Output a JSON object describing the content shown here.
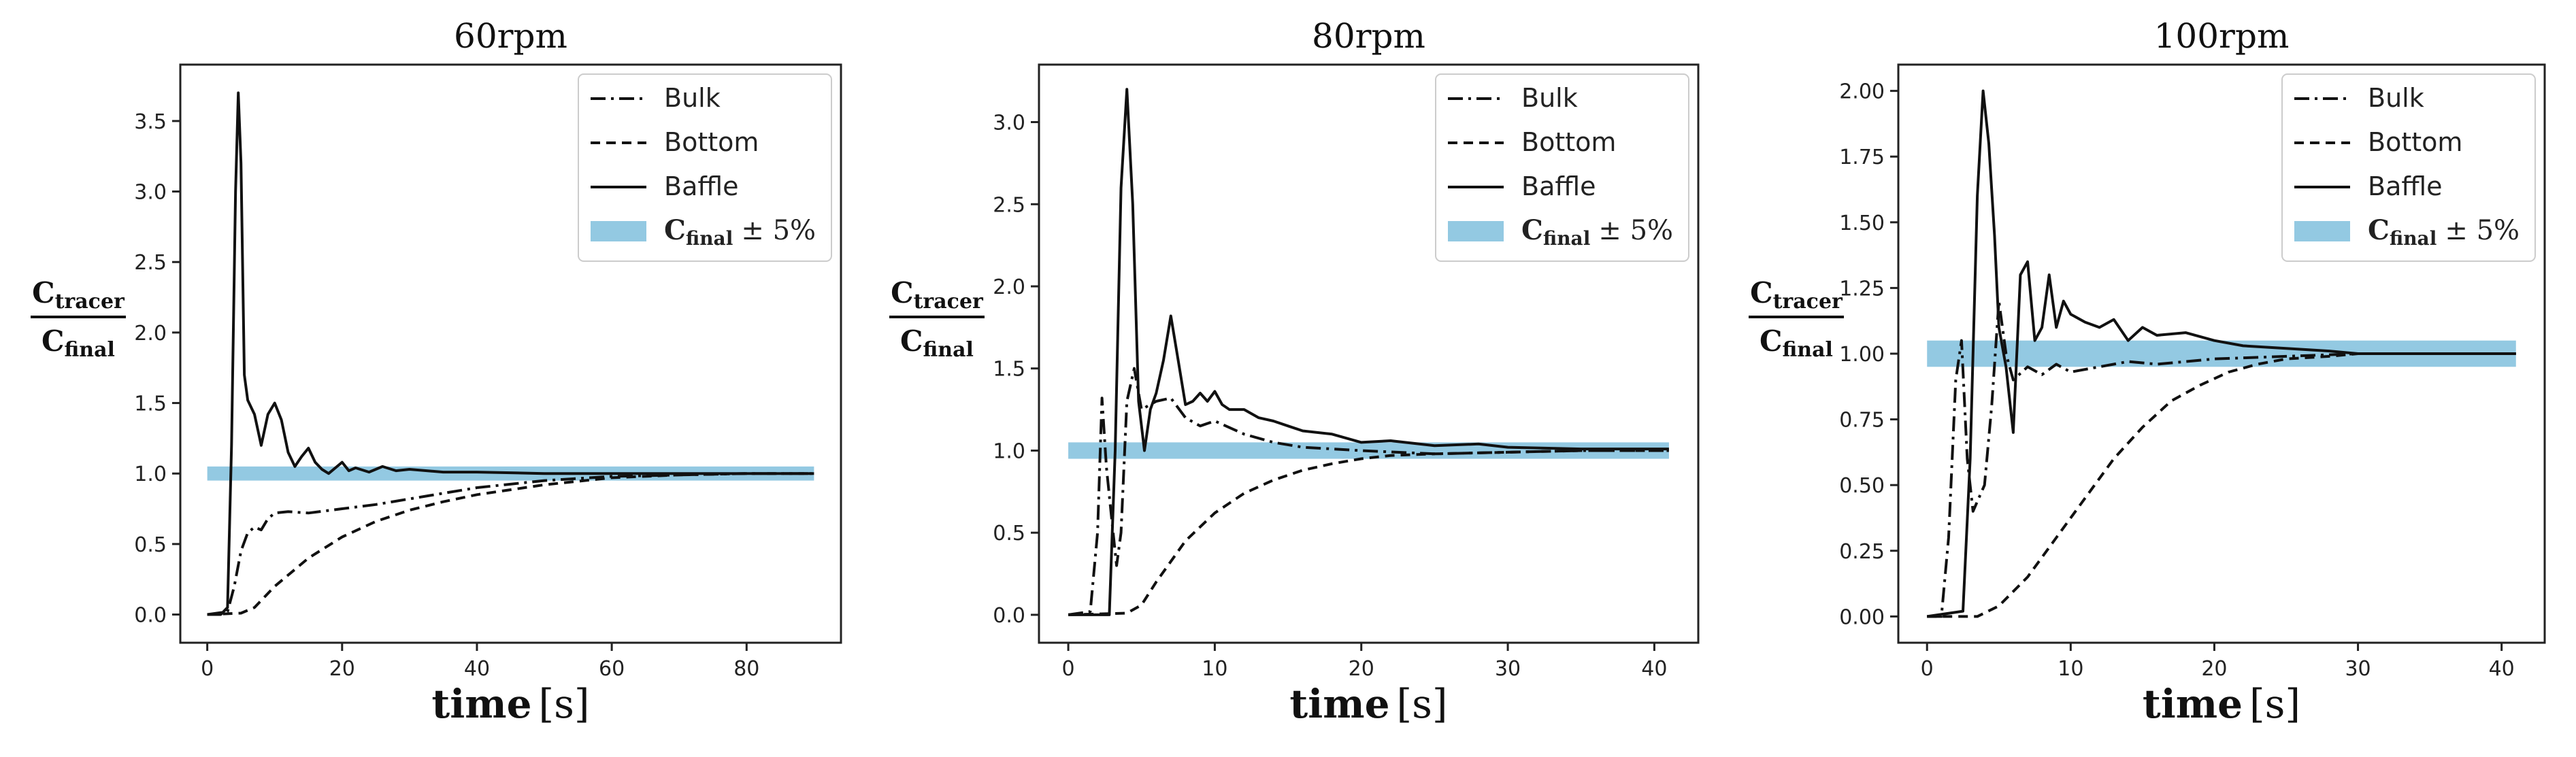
{
  "chart_data": [
    {
      "type": "line",
      "title": "60rpm",
      "xlabel": "time",
      "xunit": "[s]",
      "ylabel_num": "C",
      "ylabel_num_sub": "tracer",
      "ylabel_den": "C",
      "ylabel_den_sub": "final",
      "xlim": [
        -4,
        94
      ],
      "ylim": [
        -0.2,
        3.9
      ],
      "xticks": [
        0,
        20,
        40,
        60,
        80
      ],
      "yticks": [
        0.0,
        0.5,
        1.0,
        1.5,
        2.0,
        2.5,
        3.0,
        3.5
      ],
      "ytick_labels": [
        "0.0",
        "0.5",
        "1.0",
        "1.5",
        "2.0",
        "2.5",
        "3.0",
        "3.5"
      ],
      "band": {
        "x": [
          0,
          90
        ],
        "center": 1.0,
        "tolerance": 0.05
      },
      "series": [
        {
          "name": "Bulk",
          "style": "dashdot",
          "x": [
            0,
            3,
            4,
            5,
            6,
            7,
            8,
            9,
            10,
            12,
            15,
            20,
            25,
            30,
            40,
            50,
            60,
            70,
            80,
            90
          ],
          "y": [
            0,
            0.02,
            0.2,
            0.45,
            0.58,
            0.62,
            0.6,
            0.68,
            0.72,
            0.73,
            0.72,
            0.75,
            0.78,
            0.82,
            0.9,
            0.95,
            0.98,
            0.99,
            1.0,
            1.0
          ]
        },
        {
          "name": "Bottom",
          "style": "dashed",
          "x": [
            0,
            5,
            7,
            10,
            15,
            20,
            25,
            30,
            35,
            40,
            50,
            60,
            70,
            80,
            90
          ],
          "y": [
            0,
            0.01,
            0.05,
            0.2,
            0.4,
            0.55,
            0.66,
            0.74,
            0.8,
            0.85,
            0.92,
            0.97,
            0.99,
            1.0,
            1.0
          ]
        },
        {
          "name": "Baffle",
          "style": "solid",
          "x": [
            0,
            2,
            3,
            3.6,
            4.2,
            4.6,
            5,
            5.5,
            6,
            7,
            8,
            9,
            10,
            11,
            12,
            13,
            14,
            15,
            16,
            17,
            18,
            20,
            21,
            22,
            24,
            26,
            28,
            30,
            35,
            40,
            50,
            60,
            70,
            80,
            90
          ],
          "y": [
            0,
            0.0,
            0.05,
            1.2,
            3.0,
            3.7,
            3.2,
            1.7,
            1.52,
            1.42,
            1.2,
            1.42,
            1.5,
            1.38,
            1.15,
            1.05,
            1.12,
            1.18,
            1.08,
            1.03,
            1.0,
            1.08,
            1.02,
            1.04,
            1.01,
            1.05,
            1.02,
            1.03,
            1.01,
            1.01,
            1.0,
            1.0,
            1.0,
            1.0,
            1.0
          ]
        }
      ],
      "legend": {
        "location": "upper right",
        "entries": [
          "Bulk",
          "Bottom",
          "Baffle"
        ],
        "band_label_main": "C",
        "band_label_sub": "final",
        "band_label_suffix": "± 5%"
      }
    },
    {
      "type": "line",
      "title": "80rpm",
      "xlabel": "time",
      "xunit": "[s]",
      "ylabel_num": "C",
      "ylabel_num_sub": "tracer",
      "ylabel_den": "C",
      "ylabel_den_sub": "final",
      "xlim": [
        -2,
        43
      ],
      "ylim": [
        -0.17,
        3.35
      ],
      "xticks": [
        0,
        10,
        20,
        30,
        40
      ],
      "yticks": [
        0.0,
        0.5,
        1.0,
        1.5,
        2.0,
        2.5,
        3.0
      ],
      "ytick_labels": [
        "0.0",
        "0.5",
        "1.0",
        "1.5",
        "2.0",
        "2.5",
        "3.0"
      ],
      "band": {
        "x": [
          0,
          41
        ],
        "center": 1.0,
        "tolerance": 0.05
      },
      "series": [
        {
          "name": "Bulk",
          "style": "dashdot",
          "x": [
            0,
            1.5,
            2,
            2.3,
            2.6,
            3,
            3.3,
            3.6,
            4,
            4.5,
            5,
            6,
            7,
            8,
            9,
            10,
            12,
            14,
            16,
            20,
            25,
            30,
            35,
            41
          ],
          "y": [
            0,
            0.02,
            0.5,
            1.32,
            0.9,
            0.55,
            0.3,
            0.5,
            1.3,
            1.5,
            1.25,
            1.3,
            1.32,
            1.2,
            1.15,
            1.18,
            1.1,
            1.05,
            1.02,
            1.0,
            0.98,
            0.99,
            1.0,
            1.0
          ]
        },
        {
          "name": "Bottom",
          "style": "dashed",
          "x": [
            0,
            4,
            5,
            6,
            8,
            10,
            12,
            14,
            16,
            18,
            20,
            22,
            25,
            30,
            35,
            41
          ],
          "y": [
            0,
            0.01,
            0.06,
            0.2,
            0.45,
            0.62,
            0.74,
            0.82,
            0.88,
            0.92,
            0.95,
            0.97,
            0.98,
            0.99,
            1.0,
            1.0
          ]
        },
        {
          "name": "Baffle",
          "style": "solid",
          "x": [
            0,
            2.8,
            3.2,
            3.6,
            4,
            4.4,
            4.8,
            5.2,
            5.6,
            6,
            6.5,
            7,
            7.5,
            8,
            8.5,
            9,
            9.5,
            10,
            10.5,
            11,
            12,
            13,
            14,
            15,
            16,
            18,
            20,
            22,
            25,
            28,
            30,
            35,
            41
          ],
          "y": [
            0,
            0.0,
            1.0,
            2.6,
            3.2,
            2.5,
            1.3,
            1.0,
            1.25,
            1.35,
            1.55,
            1.82,
            1.55,
            1.28,
            1.3,
            1.35,
            1.3,
            1.36,
            1.28,
            1.25,
            1.25,
            1.2,
            1.18,
            1.15,
            1.12,
            1.1,
            1.05,
            1.06,
            1.03,
            1.04,
            1.02,
            1.01,
            1.01
          ]
        }
      ],
      "legend": {
        "location": "upper right",
        "entries": [
          "Bulk",
          "Bottom",
          "Baffle"
        ],
        "band_label_main": "C",
        "band_label_sub": "final",
        "band_label_suffix": "± 5%"
      }
    },
    {
      "type": "line",
      "title": "100rpm",
      "xlabel": "time",
      "xunit": "[s]",
      "ylabel_num": "C",
      "ylabel_num_sub": "tracer",
      "ylabel_den": "C",
      "ylabel_den_sub": "final",
      "xlim": [
        -2,
        43
      ],
      "ylim": [
        -0.1,
        2.1
      ],
      "xticks": [
        0,
        10,
        20,
        30,
        40
      ],
      "yticks": [
        0.0,
        0.25,
        0.5,
        0.75,
        1.0,
        1.25,
        1.5,
        1.75,
        2.0
      ],
      "ytick_labels": [
        "0.00",
        "0.25",
        "0.50",
        "0.75",
        "1.00",
        "1.25",
        "1.50",
        "1.75",
        "2.00"
      ],
      "band": {
        "x": [
          0,
          41
        ],
        "center": 1.0,
        "tolerance": 0.05
      },
      "series": [
        {
          "name": "Bulk",
          "style": "dashdot",
          "x": [
            0,
            1,
            1.5,
            2,
            2.4,
            2.8,
            3.2,
            3.6,
            4,
            4.5,
            5,
            5.5,
            6,
            7,
            8,
            9,
            10,
            12,
            14,
            16,
            20,
            25,
            30,
            35,
            41
          ],
          "y": [
            0,
            0.0,
            0.3,
            0.9,
            1.05,
            0.6,
            0.4,
            0.45,
            0.5,
            0.8,
            1.2,
            1.0,
            0.9,
            0.95,
            0.92,
            0.96,
            0.93,
            0.95,
            0.97,
            0.96,
            0.98,
            0.99,
            1.0,
            1.0,
            1.0
          ]
        },
        {
          "name": "Bottom",
          "style": "dashed",
          "x": [
            0,
            3.5,
            5,
            7,
            9,
            11,
            13,
            15,
            17,
            19,
            21,
            23,
            25,
            28,
            30,
            35,
            41
          ],
          "y": [
            0,
            0.0,
            0.04,
            0.15,
            0.3,
            0.45,
            0.6,
            0.72,
            0.82,
            0.88,
            0.93,
            0.96,
            0.98,
            0.99,
            1.0,
            1.0,
            1.0
          ]
        },
        {
          "name": "Baffle",
          "style": "solid",
          "x": [
            0,
            2.5,
            3,
            3.5,
            3.9,
            4.3,
            4.7,
            5,
            5.5,
            6,
            6.5,
            7,
            7.5,
            8,
            8.5,
            9,
            9.5,
            10,
            11,
            12,
            13,
            14,
            15,
            16,
            18,
            20,
            22,
            25,
            28,
            30,
            35,
            41
          ],
          "y": [
            0,
            0.02,
            0.6,
            1.6,
            2.0,
            1.8,
            1.45,
            1.1,
            0.95,
            0.7,
            1.3,
            1.35,
            1.05,
            1.1,
            1.3,
            1.1,
            1.2,
            1.15,
            1.12,
            1.1,
            1.13,
            1.05,
            1.1,
            1.07,
            1.08,
            1.05,
            1.03,
            1.02,
            1.01,
            1.0,
            1.0,
            1.0
          ]
        }
      ],
      "legend": {
        "location": "upper right",
        "entries": [
          "Bulk",
          "Bottom",
          "Baffle"
        ],
        "band_label_main": "C",
        "band_label_sub": "final",
        "band_label_suffix": "± 5%"
      }
    }
  ],
  "colors": {
    "band": "#93c9e2",
    "line": "#111111",
    "axis": "#222222",
    "background": "#ffffff"
  }
}
